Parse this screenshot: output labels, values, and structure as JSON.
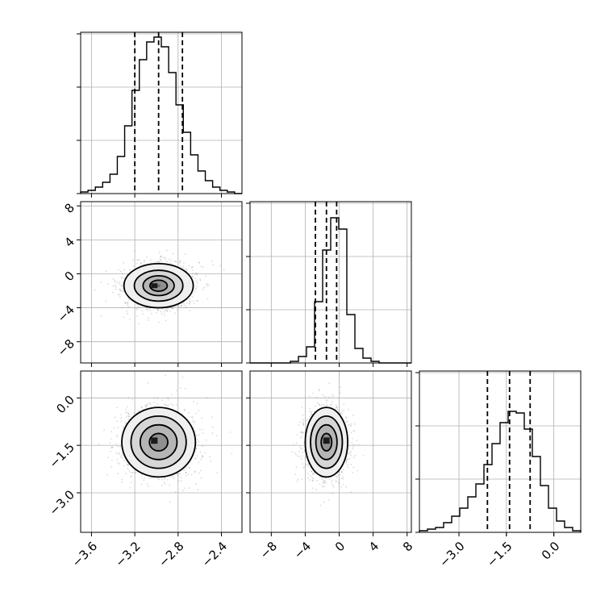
{
  "chart_data": {
    "type": "corner",
    "parameters": [
      {
        "ticks": [
          -3.6,
          -3.2,
          -2.8,
          -2.4
        ],
        "tick_labels": [
          "−3.6",
          "−3.2",
          "−2.8",
          "−2.4"
        ],
        "range": [
          -3.7,
          -2.21
        ],
        "quantiles": [
          -3.2,
          -2.98,
          -2.76
        ],
        "hist_counts": [
          1,
          2,
          4,
          7,
          12,
          23,
          42,
          64,
          83,
          94,
          97,
          91,
          75,
          55,
          38,
          24,
          14,
          8,
          4,
          2,
          1,
          0
        ]
      },
      {
        "ticks": [
          -8,
          -4,
          0,
          4,
          8
        ],
        "tick_labels": [
          "−8",
          "−4",
          "0",
          "4",
          "8"
        ],
        "range": [
          -10.5,
          8.5
        ],
        "quantiles": [
          -2.8,
          -1.5,
          -0.3
        ],
        "hist_counts": [
          0,
          0,
          0,
          0,
          0,
          1,
          4,
          10,
          38,
          70,
          90,
          83,
          30,
          9,
          3,
          1,
          0,
          0,
          0,
          0
        ]
      },
      {
        "ticks": [
          -3.0,
          -1.5,
          0.0
        ],
        "tick_labels": [
          "−3.0",
          "−1.5",
          "0.0"
        ],
        "range": [
          -4.25,
          0.85
        ],
        "quantiles": [
          -2.1,
          -1.4,
          -0.75
        ],
        "hist_counts": [
          1,
          2,
          3,
          6,
          10,
          15,
          22,
          30,
          42,
          55,
          68,
          75,
          74,
          64,
          47,
          29,
          15,
          7,
          3,
          1
        ]
      }
    ],
    "hist_ylim": 100,
    "hist_y_ticks": [
      0,
      33,
      66,
      99
    ],
    "pairs": [
      {
        "x_param": 0,
        "y_param": 1,
        "center": [
          -2.98,
          -1.4
        ],
        "sigma": [
          0.16,
          1.3
        ],
        "rho": 0,
        "contour_levels": [
          0.12,
          0.5,
          0.9,
          1.4,
          2.0
        ],
        "core": [
          -3.02,
          -1.4
        ]
      },
      {
        "x_param": 0,
        "y_param": 2,
        "center": [
          -2.98,
          -1.4
        ],
        "sigma": [
          0.17,
          0.55
        ],
        "rho": 0,
        "contour_levels": [
          0.5,
          1.0,
          1.5,
          2.0
        ],
        "core": [
          -3.02,
          -1.35
        ]
      },
      {
        "x_param": 1,
        "y_param": 2,
        "center": [
          -1.5,
          -1.4
        ],
        "sigma": [
          1.25,
          0.55
        ],
        "rho": 0,
        "contour_levels": [
          0.5,
          1.0,
          1.5,
          2.0
        ],
        "core": [
          -1.5,
          -1.35
        ]
      }
    ]
  }
}
